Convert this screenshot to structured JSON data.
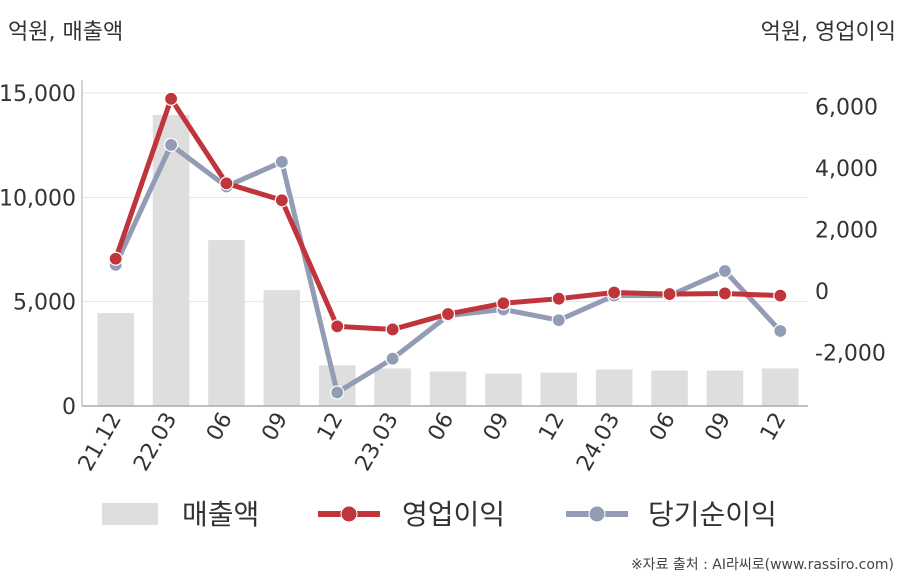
{
  "left_unit_label": "억원, 매출액",
  "right_unit_label": "억원, 영업이익",
  "source": "※자료 출처 : AI라씨로(www.rassiro.com)",
  "colors": {
    "revenue": "#dedede",
    "operating_profit": "#c0343b",
    "net_income": "#929cb5",
    "axis": "#aaaaaa",
    "grid": "#e6e6e6"
  },
  "chart_data": {
    "type": "bar",
    "categories": [
      "21.12",
      "22.03",
      "06",
      "09",
      "12",
      "23.03",
      "06",
      "09",
      "12",
      "24.03",
      "06",
      "09",
      "12"
    ],
    "y_left": {
      "min": 0,
      "max": 15000,
      "ticks": [
        "0",
        "5,000",
        "10,000",
        "15,000"
      ],
      "tick_values": [
        0,
        5000,
        10000,
        15000
      ]
    },
    "y_right": {
      "min": -3800,
      "max": 6500,
      "ticks": [
        "-2,000",
        "0",
        "2,000",
        "4,000",
        "6,000"
      ],
      "tick_values": [
        -2000,
        0,
        2000,
        4000,
        6000
      ]
    },
    "series": [
      {
        "name": "매출액",
        "type": "bar",
        "axis": "left",
        "values": [
          4450,
          13950,
          7950,
          5550,
          1950,
          1800,
          1650,
          1550,
          1600,
          1750,
          1700,
          1700,
          1800
        ]
      },
      {
        "name": "영업이익",
        "type": "line",
        "axis": "right",
        "values": [
          1050,
          6250,
          3500,
          2950,
          -1150,
          -1250,
          -750,
          -400,
          -250,
          -50,
          -100,
          -80,
          -150
        ]
      },
      {
        "name": "당기순이익",
        "type": "line",
        "axis": "right",
        "values": [
          850,
          4750,
          3400,
          4200,
          -3300,
          -2200,
          -800,
          -600,
          -950,
          -150,
          -150,
          650,
          -1300
        ]
      }
    ],
    "grid": true,
    "legend_position": "bottom"
  }
}
